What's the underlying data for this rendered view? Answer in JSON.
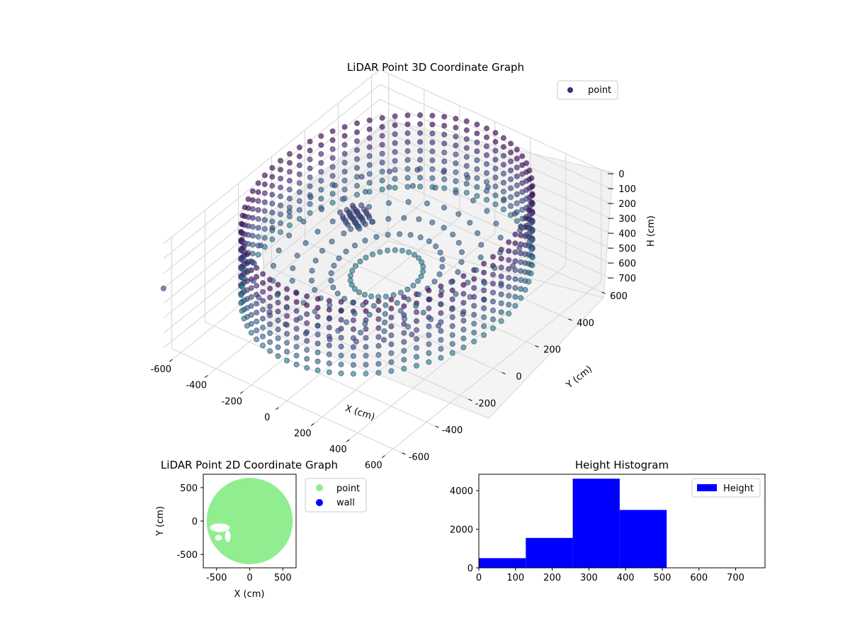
{
  "chart_data": [
    {
      "type": "scatter",
      "projection": "3d",
      "title": "LiDAR Point 3D Coordinate Graph",
      "xlabel": "X (cm)",
      "ylabel": "Y (cm)",
      "zlabel": "H (cm)",
      "xlim": [
        -650,
        650
      ],
      "ylim": [
        -650,
        650
      ],
      "zlim": [
        0,
        750
      ],
      "z_inverted": true,
      "xticks": [
        -600,
        -400,
        -200,
        0,
        200,
        400,
        600
      ],
      "yticks": [
        -600,
        -400,
        -200,
        0,
        200,
        400,
        600
      ],
      "zticks": [
        0,
        100,
        200,
        300,
        400,
        500,
        600,
        700
      ],
      "grid": true,
      "legend": {
        "position": "top-right",
        "entries": [
          "point"
        ]
      },
      "series": [
        {
          "name": "point",
          "color": "#482878",
          "colormap": "viridis",
          "shape": "ring of points around a wall at radius ~600 cm, heights 0-500 cm, dense cluster near (-300,100)"
        }
      ],
      "sample_points": [
        {
          "x": 600,
          "y": 0,
          "h": 50
        },
        {
          "x": 600,
          "y": 0,
          "h": 250
        },
        {
          "x": 600,
          "y": 0,
          "h": 450
        },
        {
          "x": 0,
          "y": 600,
          "h": 50
        },
        {
          "x": 0,
          "y": 600,
          "h": 250
        },
        {
          "x": 0,
          "y": 600,
          "h": 450
        },
        {
          "x": -600,
          "y": 0,
          "h": 50
        },
        {
          "x": -600,
          "y": 0,
          "h": 250
        },
        {
          "x": -600,
          "y": 0,
          "h": 450
        },
        {
          "x": 0,
          "y": -600,
          "h": 50
        },
        {
          "x": 0,
          "y": -600,
          "h": 250
        },
        {
          "x": 0,
          "y": -600,
          "h": 450
        },
        {
          "x": -300,
          "y": 100,
          "h": 300
        },
        {
          "x": -250,
          "y": 50,
          "h": 350
        },
        {
          "x": -650,
          "y": -650,
          "h": 300
        }
      ]
    },
    {
      "type": "scatter",
      "title": "LiDAR Point 2D Coordinate Graph",
      "xlabel": "X (cm)",
      "ylabel": "Y (cm)",
      "xlim": [
        -700,
        700
      ],
      "ylim": [
        -700,
        700
      ],
      "xticks": [
        -500,
        0,
        500
      ],
      "yticks": [
        -500,
        0,
        500
      ],
      "legend": {
        "position": "outside-right",
        "entries": [
          "point",
          "wall"
        ]
      },
      "series": [
        {
          "name": "point",
          "color": "#90ee90",
          "shape": "filled disc of radius ~650 cm centered at origin"
        },
        {
          "name": "wall",
          "color": "#0000ff",
          "points": []
        }
      ]
    },
    {
      "type": "bar",
      "title": "Height Histogram",
      "xlim": [
        0,
        780
      ],
      "ylim": [
        0,
        4850
      ],
      "xticks": [
        0,
        100,
        200,
        300,
        400,
        500,
        600,
        700
      ],
      "yticks": [
        0,
        2000,
        4000
      ],
      "legend": {
        "position": "top-right",
        "entries": [
          "Height"
        ]
      },
      "series": [
        {
          "name": "Height",
          "color": "#0000ff",
          "bins": [
            {
              "start": 0,
              "end": 128,
              "count": 500
            },
            {
              "start": 128,
              "end": 256,
              "count": 1550
            },
            {
              "start": 256,
              "end": 384,
              "count": 4620
            },
            {
              "start": 384,
              "end": 512,
              "count": 3000
            },
            {
              "start": 512,
              "end": 640,
              "count": 0
            },
            {
              "start": 640,
              "end": 768,
              "count": 0
            }
          ]
        }
      ]
    }
  ]
}
